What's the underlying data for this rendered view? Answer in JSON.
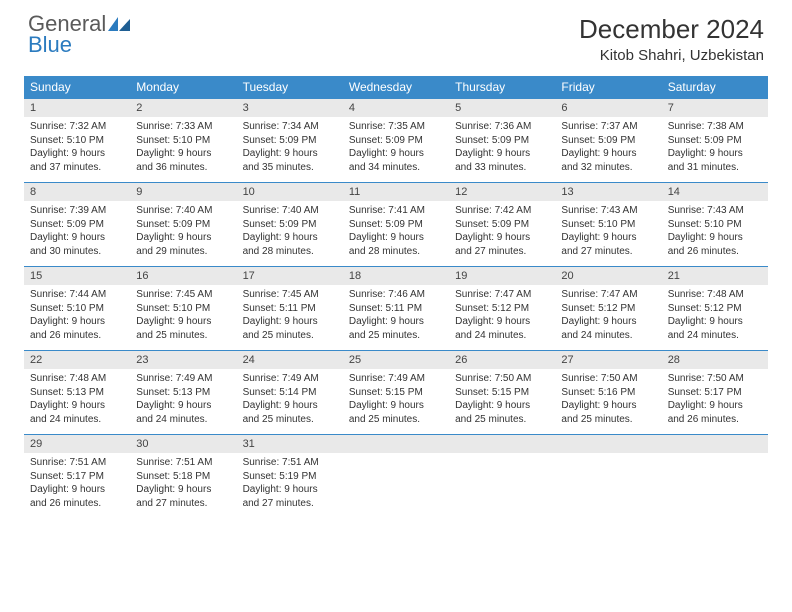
{
  "logo": {
    "word1": "General",
    "word2": "Blue"
  },
  "title": "December 2024",
  "location": "Kitob Shahri, Uzbekistan",
  "colors": {
    "header_bg": "#3a8ac9",
    "header_text": "#ffffff",
    "daynum_bg": "#e9e9e9",
    "row_border": "#3a8ac9",
    "logo_gray": "#5a5a5a",
    "logo_blue": "#2b7bbf"
  },
  "weekdays": [
    "Sunday",
    "Monday",
    "Tuesday",
    "Wednesday",
    "Thursday",
    "Friday",
    "Saturday"
  ],
  "weeks": [
    [
      {
        "n": "1",
        "sr": "7:32 AM",
        "ss": "5:10 PM",
        "dl": "9 hours and 37 minutes."
      },
      {
        "n": "2",
        "sr": "7:33 AM",
        "ss": "5:10 PM",
        "dl": "9 hours and 36 minutes."
      },
      {
        "n": "3",
        "sr": "7:34 AM",
        "ss": "5:09 PM",
        "dl": "9 hours and 35 minutes."
      },
      {
        "n": "4",
        "sr": "7:35 AM",
        "ss": "5:09 PM",
        "dl": "9 hours and 34 minutes."
      },
      {
        "n": "5",
        "sr": "7:36 AM",
        "ss": "5:09 PM",
        "dl": "9 hours and 33 minutes."
      },
      {
        "n": "6",
        "sr": "7:37 AM",
        "ss": "5:09 PM",
        "dl": "9 hours and 32 minutes."
      },
      {
        "n": "7",
        "sr": "7:38 AM",
        "ss": "5:09 PM",
        "dl": "9 hours and 31 minutes."
      }
    ],
    [
      {
        "n": "8",
        "sr": "7:39 AM",
        "ss": "5:09 PM",
        "dl": "9 hours and 30 minutes."
      },
      {
        "n": "9",
        "sr": "7:40 AM",
        "ss": "5:09 PM",
        "dl": "9 hours and 29 minutes."
      },
      {
        "n": "10",
        "sr": "7:40 AM",
        "ss": "5:09 PM",
        "dl": "9 hours and 28 minutes."
      },
      {
        "n": "11",
        "sr": "7:41 AM",
        "ss": "5:09 PM",
        "dl": "9 hours and 28 minutes."
      },
      {
        "n": "12",
        "sr": "7:42 AM",
        "ss": "5:09 PM",
        "dl": "9 hours and 27 minutes."
      },
      {
        "n": "13",
        "sr": "7:43 AM",
        "ss": "5:10 PM",
        "dl": "9 hours and 27 minutes."
      },
      {
        "n": "14",
        "sr": "7:43 AM",
        "ss": "5:10 PM",
        "dl": "9 hours and 26 minutes."
      }
    ],
    [
      {
        "n": "15",
        "sr": "7:44 AM",
        "ss": "5:10 PM",
        "dl": "9 hours and 26 minutes."
      },
      {
        "n": "16",
        "sr": "7:45 AM",
        "ss": "5:10 PM",
        "dl": "9 hours and 25 minutes."
      },
      {
        "n": "17",
        "sr": "7:45 AM",
        "ss": "5:11 PM",
        "dl": "9 hours and 25 minutes."
      },
      {
        "n": "18",
        "sr": "7:46 AM",
        "ss": "5:11 PM",
        "dl": "9 hours and 25 minutes."
      },
      {
        "n": "19",
        "sr": "7:47 AM",
        "ss": "5:12 PM",
        "dl": "9 hours and 24 minutes."
      },
      {
        "n": "20",
        "sr": "7:47 AM",
        "ss": "5:12 PM",
        "dl": "9 hours and 24 minutes."
      },
      {
        "n": "21",
        "sr": "7:48 AM",
        "ss": "5:12 PM",
        "dl": "9 hours and 24 minutes."
      }
    ],
    [
      {
        "n": "22",
        "sr": "7:48 AM",
        "ss": "5:13 PM",
        "dl": "9 hours and 24 minutes."
      },
      {
        "n": "23",
        "sr": "7:49 AM",
        "ss": "5:13 PM",
        "dl": "9 hours and 24 minutes."
      },
      {
        "n": "24",
        "sr": "7:49 AM",
        "ss": "5:14 PM",
        "dl": "9 hours and 25 minutes."
      },
      {
        "n": "25",
        "sr": "7:49 AM",
        "ss": "5:15 PM",
        "dl": "9 hours and 25 minutes."
      },
      {
        "n": "26",
        "sr": "7:50 AM",
        "ss": "5:15 PM",
        "dl": "9 hours and 25 minutes."
      },
      {
        "n": "27",
        "sr": "7:50 AM",
        "ss": "5:16 PM",
        "dl": "9 hours and 25 minutes."
      },
      {
        "n": "28",
        "sr": "7:50 AM",
        "ss": "5:17 PM",
        "dl": "9 hours and 26 minutes."
      }
    ],
    [
      {
        "n": "29",
        "sr": "7:51 AM",
        "ss": "5:17 PM",
        "dl": "9 hours and 26 minutes."
      },
      {
        "n": "30",
        "sr": "7:51 AM",
        "ss": "5:18 PM",
        "dl": "9 hours and 27 minutes."
      },
      {
        "n": "31",
        "sr": "7:51 AM",
        "ss": "5:19 PM",
        "dl": "9 hours and 27 minutes."
      },
      {
        "empty": true
      },
      {
        "empty": true
      },
      {
        "empty": true
      },
      {
        "empty": true
      }
    ]
  ],
  "labels": {
    "sunrise": "Sunrise:",
    "sunset": "Sunset:",
    "daylight": "Daylight:"
  }
}
